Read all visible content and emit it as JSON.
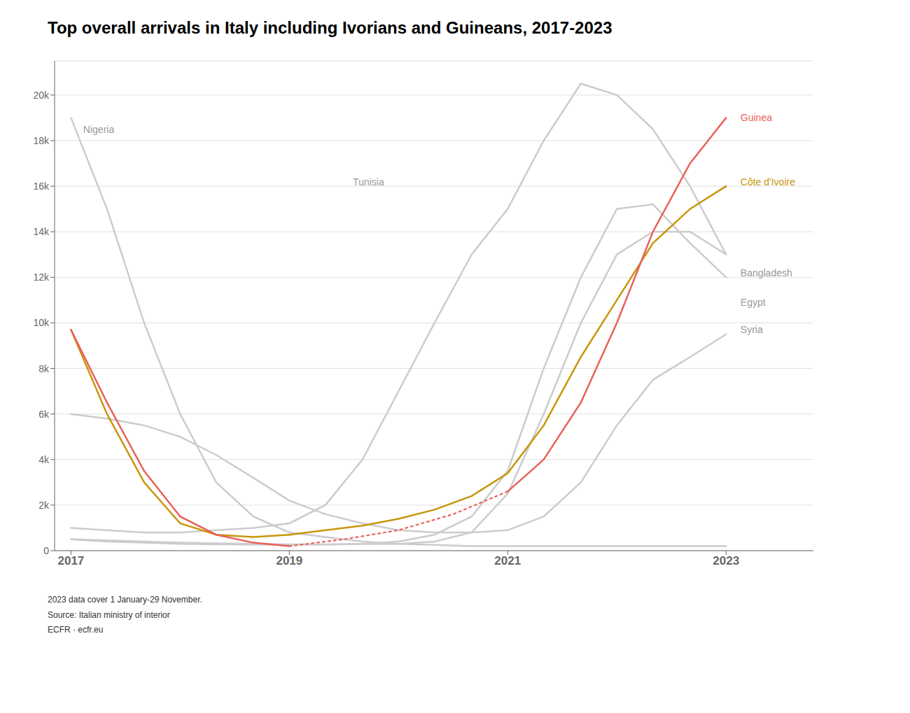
{
  "chart_data": {
    "type": "line",
    "title": "Top overall arrivals in Italy including Ivorians and Guineans, 2017-2023",
    "footer": [
      "2023 data cover 1 January-29 November.",
      "Source: Italian ministry of interior",
      "ECFR · ecfr.eu"
    ],
    "series": [
      {
        "color": "#cccccc",
        "line_style": "solid",
        "x": [
          2017,
          2017.33,
          2017.67,
          2018,
          2018.33,
          2018.67,
          2019,
          2019.33,
          2019.67,
          2020,
          2020.33,
          2020.67,
          2021,
          2021.33,
          2021.67,
          2022,
          2022.33,
          2022.67,
          2023
        ],
        "values": [
          19000,
          15000,
          10000,
          6000,
          3000,
          1500,
          800,
          600,
          400,
          300,
          250,
          200,
          200,
          200,
          200,
          200,
          200,
          200,
          200
        ]
      },
      {
        "color": "#cccccc",
        "line_style": "solid",
        "x": [
          2017,
          2017.33,
          2017.67,
          2018,
          2018.33,
          2018.67,
          2019,
          2019.33,
          2019.67,
          2020,
          2020.33,
          2020.67,
          2021,
          2021.33,
          2021.67,
          2022,
          2022.33,
          2022.67,
          2023
        ],
        "values": [
          1000,
          900,
          800,
          800,
          900,
          1000,
          1200,
          2000,
          4000,
          7000,
          10000,
          13000,
          15000,
          18000,
          20500,
          20000,
          18500,
          16000,
          13000
        ]
      },
      {
        "color": "#cccccc",
        "line_style": "solid",
        "x": [
          2017,
          2017.33,
          2017.67,
          2018,
          2018.33,
          2018.67,
          2019,
          2019.33,
          2019.67,
          2020,
          2020.33,
          2020.67,
          2021,
          2021.33,
          2021.67,
          2022,
          2022.33,
          2022.67,
          2023
        ],
        "values": [
          500,
          400,
          350,
          300,
          280,
          270,
          260,
          270,
          300,
          400,
          700,
          1500,
          3500,
          8000,
          12000,
          15000,
          15200,
          13500,
          12000
        ]
      },
      {
        "color": "#cccccc",
        "line_style": "solid",
        "x": [
          2017,
          2017.33,
          2017.67,
          2018,
          2018.33,
          2018.67,
          2019,
          2019.33,
          2019.67,
          2020,
          2020.33,
          2020.67,
          2021,
          2021.33,
          2021.67,
          2022,
          2022.33,
          2022.67,
          2023
        ],
        "values": [
          500,
          450,
          400,
          350,
          320,
          300,
          280,
          280,
          290,
          300,
          400,
          800,
          2500,
          6000,
          10000,
          13000,
          14000,
          14000,
          13000
        ]
      },
      {
        "color": "#cccccc",
        "line_style": "solid",
        "x": [
          2017,
          2017.33,
          2017.67,
          2018,
          2018.33,
          2018.67,
          2019,
          2019.33,
          2019.67,
          2020,
          2020.33,
          2020.67,
          2021,
          2021.33,
          2021.67,
          2022,
          2022.33,
          2022.67,
          2023
        ],
        "values": [
          6000,
          5800,
          5500,
          5000,
          4200,
          3200,
          2200,
          1600,
          1200,
          900,
          800,
          800,
          900,
          1500,
          3000,
          5500,
          7500,
          8500,
          9500
        ]
      },
      {
        "color": "#c8960c",
        "line_style": "solid",
        "x": [
          2017,
          2017.33,
          2017.67,
          2018,
          2018.33,
          2018.67,
          2019
        ],
        "values": [
          9700,
          6000,
          3000,
          1200,
          700,
          600,
          700
        ]
      },
      {
        "color": "#c8960c",
        "line_style": "solid",
        "x": [
          2019,
          2019.33,
          2019.67,
          2020,
          2020.33,
          2020.67,
          2021,
          2021.33,
          2021.67,
          2022,
          2022.33,
          2022.67,
          2023
        ],
        "values": [
          700,
          900,
          1100,
          1400,
          1800,
          2400,
          3400,
          5500,
          8500,
          11000,
          13500,
          15000,
          16000
        ]
      },
      {
        "color": "#e8625a",
        "line_style": "solid",
        "x": [
          2017,
          2017.33,
          2017.67,
          2018,
          2018.33,
          2018.67,
          2019
        ],
        "values": [
          9700,
          6500,
          3500,
          1500,
          700,
          350,
          200
        ]
      },
      {
        "color": "#e8625a",
        "line_style": "dotted",
        "x": [
          2019,
          2019.5,
          2020,
          2020.5,
          2021
        ],
        "values": [
          200,
          500,
          900,
          1600,
          2600
        ]
      },
      {
        "color": "#e8625a",
        "line_style": "solid",
        "x": [
          2021,
          2021.33,
          2021.67,
          2022,
          2022.33,
          2022.67,
          2023
        ],
        "values": [
          2600,
          4000,
          6500,
          10000,
          14000,
          17000,
          19000
        ]
      }
    ],
    "annotations": [
      {
        "text": "Nigeria",
        "x": 2017.08,
        "y": 18500,
        "color": "#999999"
      },
      {
        "text": "Tunisia",
        "x": 2019.55,
        "y": 16200,
        "color": "#999999"
      },
      {
        "text": "Guinea",
        "x": 2023.1,
        "y": 19000,
        "color": "#e8625a"
      },
      {
        "text": "Côte d'Ivoire",
        "x": 2023.1,
        "y": 16200,
        "color": "#c8960c"
      },
      {
        "text": "Bangladesh",
        "x": 2023.1,
        "y": 12200,
        "color": "#999999"
      },
      {
        "text": "Egypt",
        "x": 2023.1,
        "y": 10900,
        "color": "#999999"
      },
      {
        "text": "Syria",
        "x": 2023.1,
        "y": 9700,
        "color": "#999999"
      }
    ],
    "xlim": [
      2016.85,
      2023.8
    ],
    "xticks": [
      2017,
      2019,
      2021,
      2023
    ],
    "ylim": [
      0,
      21500
    ],
    "yticks": [
      0,
      {
        "value": 2000,
        "label": "2k"
      },
      {
        "value": 4000,
        "label": "4k"
      },
      {
        "value": 6000,
        "label": "6k"
      },
      {
        "value": 8000,
        "label": "8k"
      },
      {
        "value": 10000,
        "label": "10k"
      },
      {
        "value": 12000,
        "label": "12k"
      },
      {
        "value": 14000,
        "label": "14k"
      },
      {
        "value": 16000,
        "label": "16k"
      },
      {
        "value": 18000,
        "label": "18k"
      },
      {
        "value": 20000,
        "label": "20k"
      }
    ],
    "grid": true
  }
}
